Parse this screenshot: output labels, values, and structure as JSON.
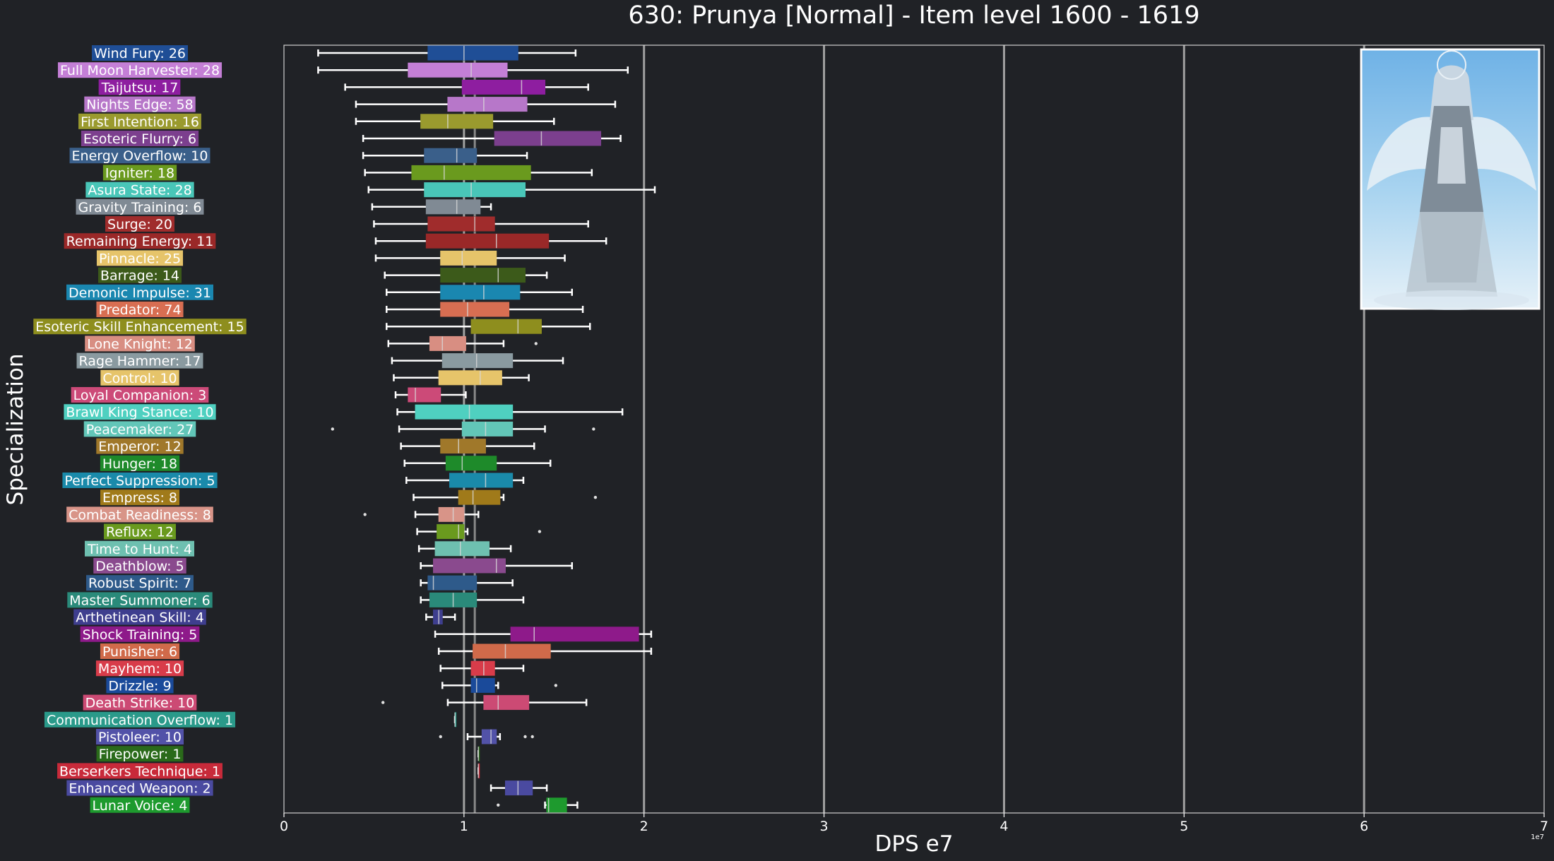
{
  "chart_data": {
    "type": "boxplot",
    "title": "630: Prunya [Normal] - Item level 1600 - 1619",
    "xlabel": "DPS e7",
    "ylabel": "Specialization",
    "x_offset_text": "1e7",
    "xlim": [
      0,
      7
    ],
    "xticks": [
      "0",
      "1",
      "2",
      "3",
      "4",
      "5",
      "6",
      "7"
    ],
    "grid": "vertical",
    "legend": "none",
    "colors": {
      "background": "#202226",
      "text": "#ffffff",
      "grid": "#a0a0a0",
      "median_guide": "#888888"
    },
    "series": [
      {
        "label": "Wind Fury: 26",
        "color": "#1f4e96",
        "whisker_low": 0.19,
        "q1": 0.8,
        "median": 1.0,
        "q3": 1.3,
        "whisker_high": 1.62,
        "outliers": []
      },
      {
        "label": "Full Moon Harvester: 28",
        "color": "#c47fd6",
        "whisker_low": 0.19,
        "q1": 0.69,
        "median": 1.04,
        "q3": 1.24,
        "whisker_high": 1.91,
        "outliers": []
      },
      {
        "label": "Taijutsu: 17",
        "color": "#8e1ea0",
        "whisker_low": 0.34,
        "q1": 0.99,
        "median": 1.32,
        "q3": 1.45,
        "whisker_high": 1.69,
        "outliers": []
      },
      {
        "label": "Nights Edge: 58",
        "color": "#b777c9",
        "whisker_low": 0.4,
        "q1": 0.91,
        "median": 1.11,
        "q3": 1.35,
        "whisker_high": 1.84,
        "outliers": []
      },
      {
        "label": "First Intention: 16",
        "color": "#9a9a2e",
        "whisker_low": 0.4,
        "q1": 0.76,
        "median": 0.91,
        "q3": 1.16,
        "whisker_high": 1.5,
        "outliers": []
      },
      {
        "label": "Esoteric Flurry: 6",
        "color": "#7c3f8e",
        "whisker_low": 0.44,
        "q1": 1.17,
        "median": 1.43,
        "q3": 1.76,
        "whisker_high": 1.87,
        "outliers": []
      },
      {
        "label": "Energy Overflow: 10",
        "color": "#3a5f8a",
        "whisker_low": 0.44,
        "q1": 0.78,
        "median": 0.96,
        "q3": 1.07,
        "whisker_high": 1.35,
        "outliers": []
      },
      {
        "label": "Igniter: 18",
        "color": "#6a9a1e",
        "whisker_low": 0.45,
        "q1": 0.71,
        "median": 0.89,
        "q3": 1.37,
        "whisker_high": 1.71,
        "outliers": []
      },
      {
        "label": "Asura State: 28",
        "color": "#49c6b8",
        "whisker_low": 0.47,
        "q1": 0.78,
        "median": 1.04,
        "q3": 1.34,
        "whisker_high": 2.06,
        "outliers": []
      },
      {
        "label": "Gravity Training: 6",
        "color": "#808a94",
        "whisker_low": 0.49,
        "q1": 0.79,
        "median": 0.96,
        "q3": 1.09,
        "whisker_high": 1.15,
        "outliers": []
      },
      {
        "label": "Surge: 20",
        "color": "#a02c2c",
        "whisker_low": 0.5,
        "q1": 0.8,
        "median": 1.06,
        "q3": 1.17,
        "whisker_high": 1.69,
        "outliers": []
      },
      {
        "label": "Remaining Energy: 11",
        "color": "#9a2828",
        "whisker_low": 0.51,
        "q1": 0.79,
        "median": 1.18,
        "q3": 1.47,
        "whisker_high": 1.79,
        "outliers": []
      },
      {
        "label": "Pinnacle: 25",
        "color": "#e6c46a",
        "whisker_low": 0.51,
        "q1": 0.87,
        "median": 0.99,
        "q3": 1.18,
        "whisker_high": 1.56,
        "outliers": []
      },
      {
        "label": "Barrage: 14",
        "color": "#3c5a1a",
        "whisker_low": 0.56,
        "q1": 0.87,
        "median": 1.19,
        "q3": 1.34,
        "whisker_high": 1.46,
        "outliers": []
      },
      {
        "label": "Demonic Impulse: 31",
        "color": "#1a87b0",
        "whisker_low": 0.57,
        "q1": 0.87,
        "median": 1.11,
        "q3": 1.31,
        "whisker_high": 1.6,
        "outliers": []
      },
      {
        "label": "Predator: 74",
        "color": "#d86e52",
        "whisker_low": 0.57,
        "q1": 0.87,
        "median": 1.02,
        "q3": 1.25,
        "whisker_high": 1.66,
        "outliers": []
      },
      {
        "label": "Esoteric Skill Enhancement: 15",
        "color": "#8e8e1e",
        "whisker_low": 0.57,
        "q1": 1.04,
        "median": 1.3,
        "q3": 1.43,
        "whisker_high": 1.7,
        "outliers": []
      },
      {
        "label": "Lone Knight: 12",
        "color": "#d88e82",
        "whisker_low": 0.58,
        "q1": 0.81,
        "median": 0.88,
        "q3": 1.01,
        "whisker_high": 1.22,
        "outliers": [
          1.4
        ]
      },
      {
        "label": "Rage Hammer: 17",
        "color": "#8a9aa0",
        "whisker_low": 0.6,
        "q1": 0.88,
        "median": 1.07,
        "q3": 1.27,
        "whisker_high": 1.55,
        "outliers": []
      },
      {
        "label": "Control: 10",
        "color": "#e6c46a",
        "whisker_low": 0.61,
        "q1": 0.86,
        "median": 1.09,
        "q3": 1.21,
        "whisker_high": 1.36,
        "outliers": []
      },
      {
        "label": "Loyal Companion: 3",
        "color": "#cc4a78",
        "whisker_low": 0.62,
        "q1": 0.69,
        "median": 0.73,
        "q3": 0.87,
        "whisker_high": 1.01,
        "outliers": []
      },
      {
        "label": "Brawl King Stance: 10",
        "color": "#4fd0c0",
        "whisker_low": 0.63,
        "q1": 0.73,
        "median": 1.03,
        "q3": 1.27,
        "whisker_high": 1.88,
        "outliers": []
      },
      {
        "label": "Peacemaker: 27",
        "color": "#62c6b8",
        "whisker_low": 0.64,
        "q1": 0.99,
        "median": 1.12,
        "q3": 1.27,
        "whisker_high": 1.45,
        "outliers": [
          0.27,
          1.72
        ]
      },
      {
        "label": "Emperor: 12",
        "color": "#a0782a",
        "whisker_low": 0.65,
        "q1": 0.87,
        "median": 0.97,
        "q3": 1.12,
        "whisker_high": 1.39,
        "outliers": []
      },
      {
        "label": "Hunger: 18",
        "color": "#1e8a2a",
        "whisker_low": 0.67,
        "q1": 0.9,
        "median": 0.99,
        "q3": 1.18,
        "whisker_high": 1.48,
        "outliers": []
      },
      {
        "label": "Perfect Suppression: 5",
        "color": "#1a8aaa",
        "whisker_low": 0.68,
        "q1": 0.92,
        "median": 1.12,
        "q3": 1.27,
        "whisker_high": 1.33,
        "outliers": []
      },
      {
        "label": "Empress: 8",
        "color": "#a07a1a",
        "whisker_low": 0.72,
        "q1": 0.97,
        "median": 1.05,
        "q3": 1.2,
        "whisker_high": 1.22,
        "outliers": [
          1.73
        ]
      },
      {
        "label": "Combat Readiness: 8",
        "color": "#d89488",
        "whisker_low": 0.73,
        "q1": 0.86,
        "median": 0.94,
        "q3": 1.0,
        "whisker_high": 1.08,
        "outliers": [
          0.45
        ]
      },
      {
        "label": "Reflux: 12",
        "color": "#6a9a1e",
        "whisker_low": 0.74,
        "q1": 0.85,
        "median": 0.97,
        "q3": 1.0,
        "whisker_high": 1.02,
        "outliers": [
          1.42
        ]
      },
      {
        "label": "Time to Hunt: 4",
        "color": "#6ec0b0",
        "whisker_low": 0.75,
        "q1": 0.84,
        "median": 0.98,
        "q3": 1.14,
        "whisker_high": 1.26,
        "outliers": []
      },
      {
        "label": "Deathblow: 5",
        "color": "#8a4a8e",
        "whisker_low": 0.76,
        "q1": 0.83,
        "median": 1.18,
        "q3": 1.23,
        "whisker_high": 1.6,
        "outliers": []
      },
      {
        "label": "Robust Spirit: 7",
        "color": "#2e5a8a",
        "whisker_low": 0.76,
        "q1": 0.8,
        "median": 0.83,
        "q3": 1.07,
        "whisker_high": 1.27,
        "outliers": []
      },
      {
        "label": "Master Summoner: 6",
        "color": "#2a8a7a",
        "whisker_low": 0.76,
        "q1": 0.81,
        "median": 0.94,
        "q3": 1.07,
        "whisker_high": 1.33,
        "outliers": []
      },
      {
        "label": "Arthetinean Skill: 4",
        "color": "#3e3e8e",
        "whisker_low": 0.79,
        "q1": 0.83,
        "median": 0.86,
        "q3": 0.88,
        "whisker_high": 0.95,
        "outliers": []
      },
      {
        "label": "Shock Training: 5",
        "color": "#8e1a8a",
        "whisker_low": 0.84,
        "q1": 1.26,
        "median": 1.39,
        "q3": 1.97,
        "whisker_high": 2.04,
        "outliers": []
      },
      {
        "label": "Punisher: 6",
        "color": "#d06a4a",
        "whisker_low": 0.86,
        "q1": 1.05,
        "median": 1.23,
        "q3": 1.48,
        "whisker_high": 2.04,
        "outliers": []
      },
      {
        "label": "Mayhem: 10",
        "color": "#d83c4a",
        "whisker_low": 0.87,
        "q1": 1.04,
        "median": 1.11,
        "q3": 1.17,
        "whisker_high": 1.33,
        "outliers": []
      },
      {
        "label": "Drizzle: 9",
        "color": "#1a4a9a",
        "whisker_low": 0.88,
        "q1": 1.04,
        "median": 1.07,
        "q3": 1.17,
        "whisker_high": 1.19,
        "outliers": [
          1.51
        ]
      },
      {
        "label": "Death Strike: 10",
        "color": "#cc4a74",
        "whisker_low": 0.91,
        "q1": 1.11,
        "median": 1.19,
        "q3": 1.36,
        "whisker_high": 1.68,
        "outliers": [
          0.55
        ]
      },
      {
        "label": "Communication Overflow: 1",
        "color": "#2a9a8a",
        "whisker_low": 0.95,
        "q1": 0.95,
        "median": 0.95,
        "q3": 0.95,
        "whisker_high": 0.95,
        "outliers": []
      },
      {
        "label": "Pistoleer: 10",
        "color": "#5252a8",
        "whisker_low": 1.02,
        "q1": 1.1,
        "median": 1.15,
        "q3": 1.18,
        "whisker_high": 1.2,
        "outliers": [
          0.87,
          1.34,
          1.38
        ]
      },
      {
        "label": "Firepower: 1",
        "color": "#2a6a1a",
        "whisker_low": 1.08,
        "q1": 1.08,
        "median": 1.08,
        "q3": 1.08,
        "whisker_high": 1.08,
        "outliers": []
      },
      {
        "label": "Berserkers Technique: 1",
        "color": "#c82a3a",
        "whisker_low": 1.08,
        "q1": 1.08,
        "median": 1.08,
        "q3": 1.08,
        "whisker_high": 1.08,
        "outliers": []
      },
      {
        "label": "Enhanced Weapon: 2",
        "color": "#4a4aa0",
        "whisker_low": 1.15,
        "q1": 1.23,
        "median": 1.3,
        "q3": 1.38,
        "whisker_high": 1.46,
        "outliers": []
      },
      {
        "label": "Lunar Voice: 4",
        "color": "#1e9a2e",
        "whisker_low": 1.45,
        "q1": 1.46,
        "median": 1.47,
        "q3": 1.57,
        "whisker_high": 1.63,
        "outliers": [
          1.19
        ]
      }
    ]
  }
}
